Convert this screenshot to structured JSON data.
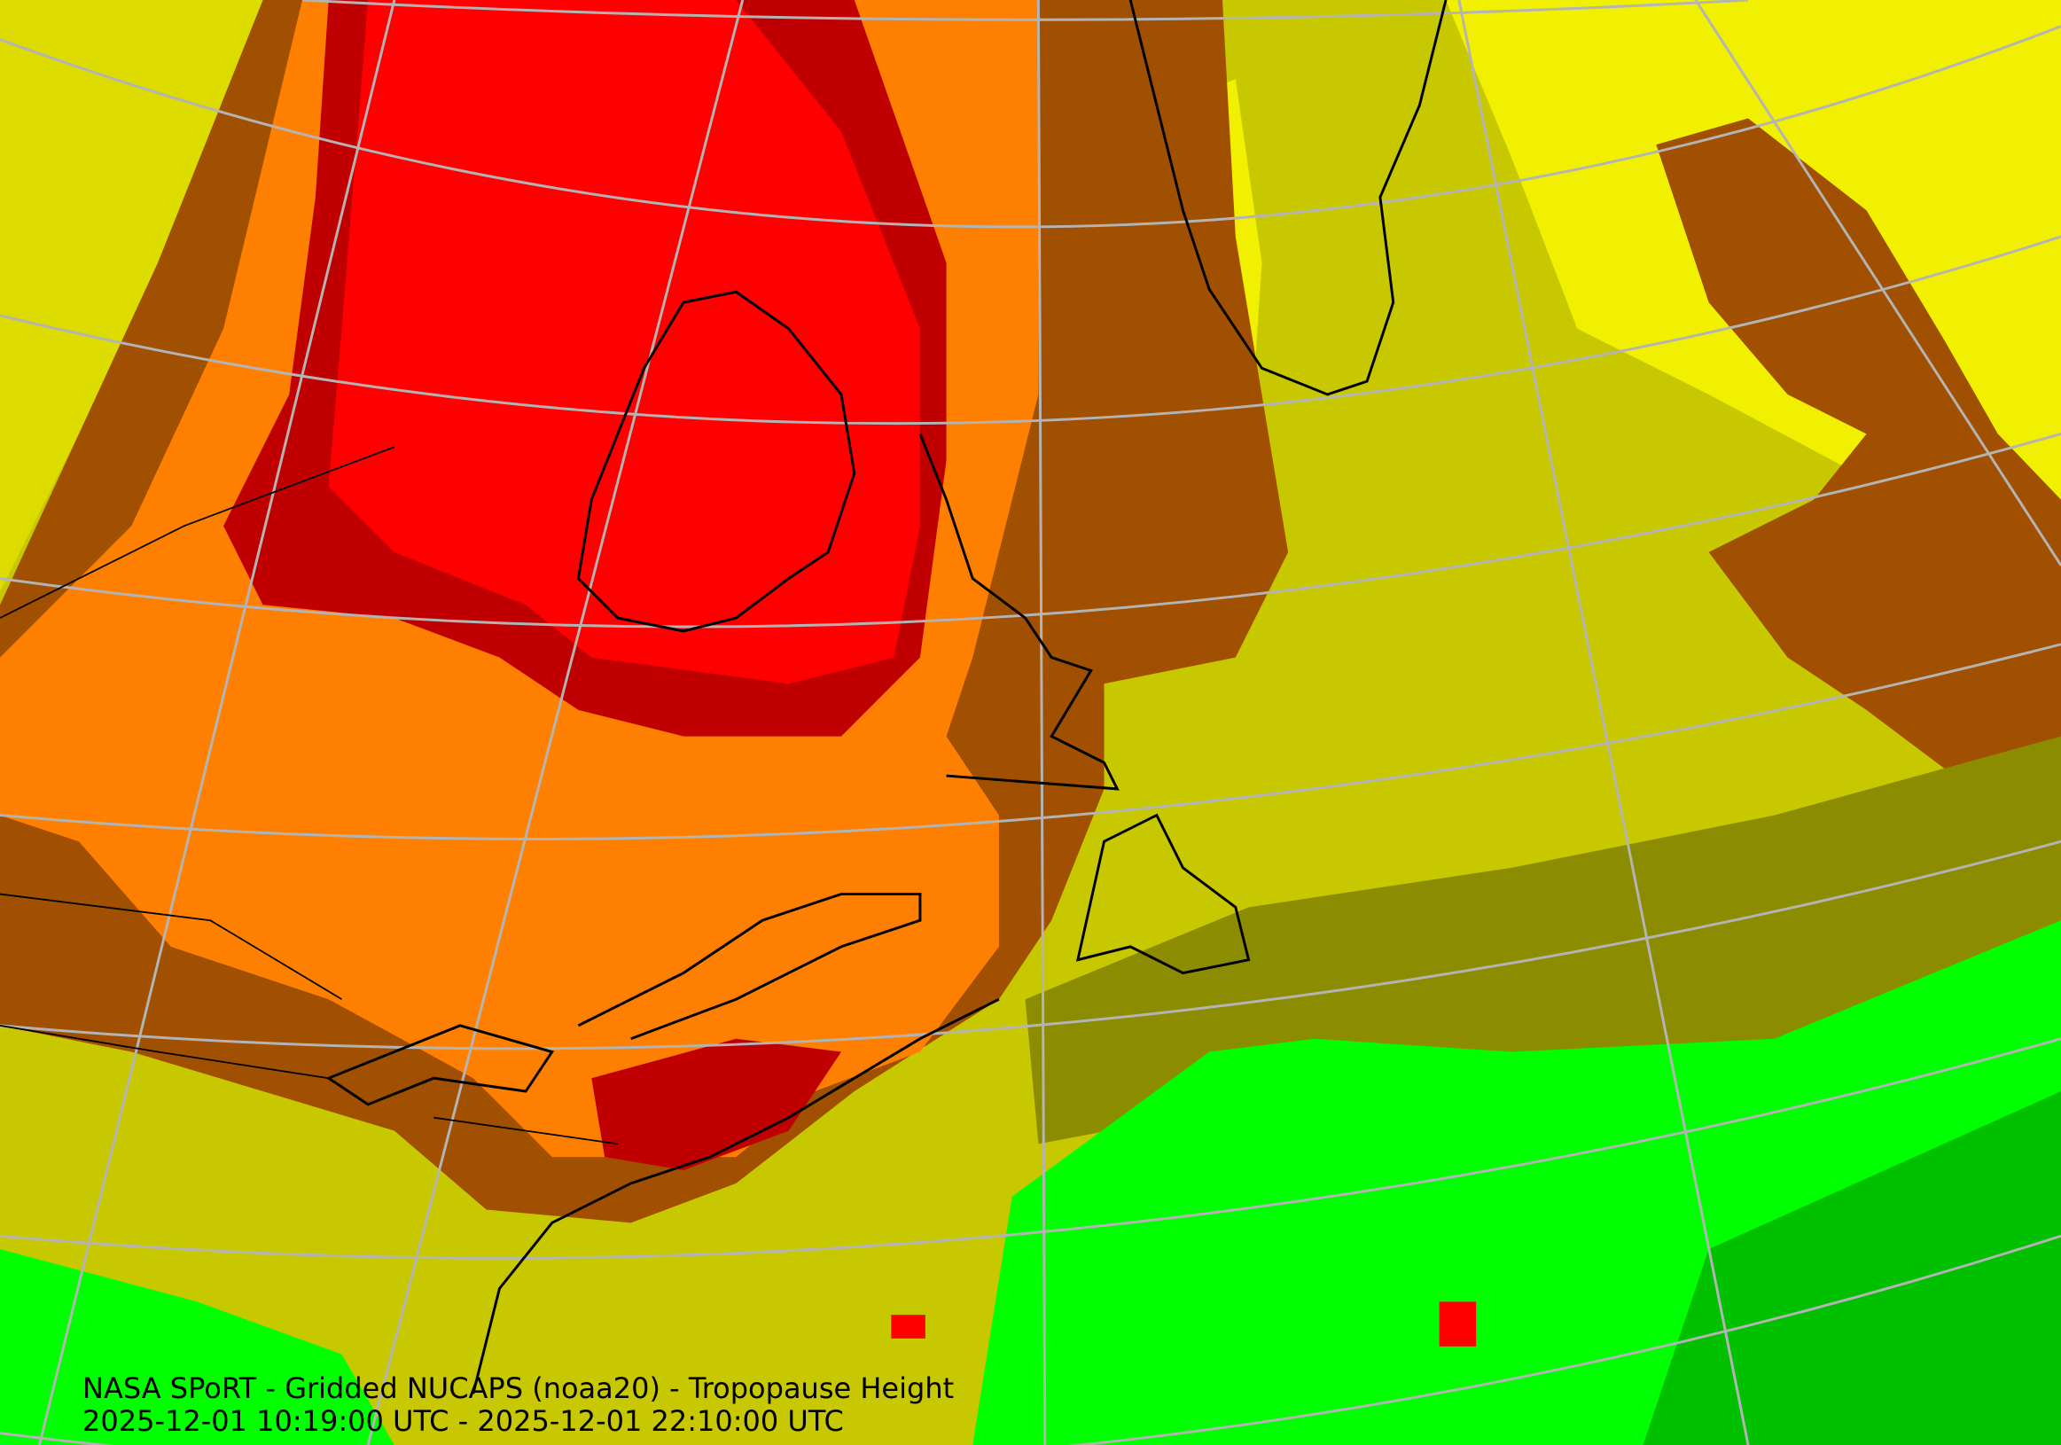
{
  "caption": {
    "title": "NASA SPoRT - Gridded NUCAPS (noaa20) - Tropopause Height",
    "time_range": "2025-12-01 10:19:00 UTC - 2025-12-01 22:10:00 UTC"
  },
  "map": {
    "field": "Tropopause Height",
    "colors": {
      "red": "#ff0000",
      "dark_red": "#c00000",
      "orange": "#ff8000",
      "brown": "#a05000",
      "yellow": "#f0f000",
      "light_olive": "#dcdc00",
      "olive": "#b4b400",
      "dark_olive": "#8c8c00",
      "green": "#00ff00",
      "dark_green": "#00c000",
      "graticule": "#b4b4b4",
      "coastline": "#000000"
    }
  }
}
